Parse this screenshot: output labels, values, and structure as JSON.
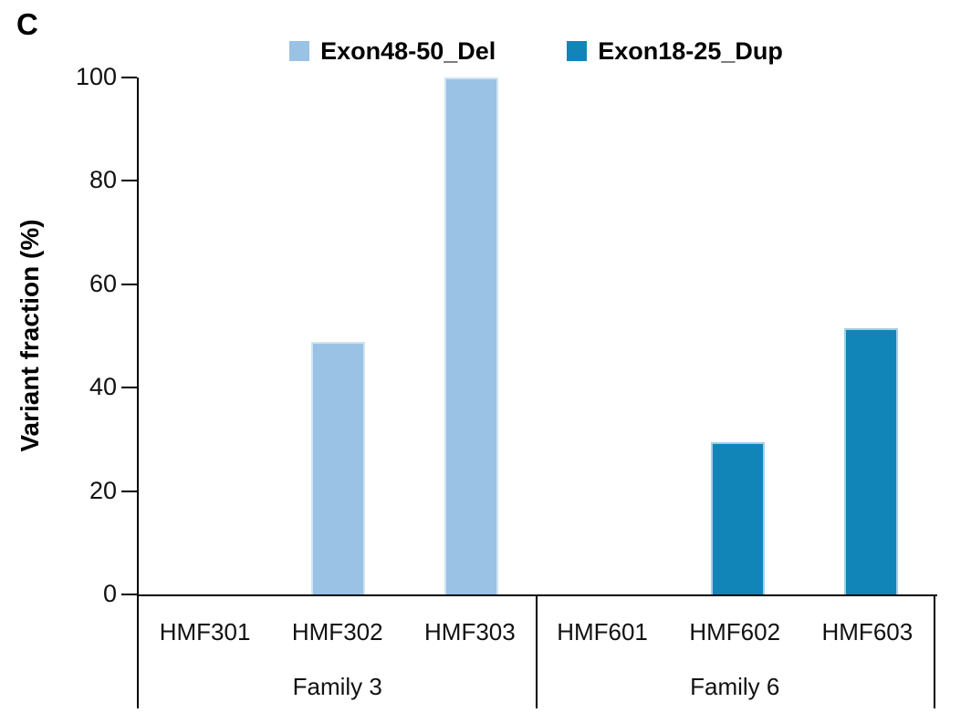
{
  "panel_label": "C",
  "legend": {
    "items": [
      {
        "label": "Exon48-50_Del",
        "color": "#9AC2E5"
      },
      {
        "label": "Exon18-25_Dup",
        "color": "#1185B8"
      }
    ]
  },
  "y_axis": {
    "title": "Variant fraction (%)",
    "ticks": [
      0,
      20,
      40,
      60,
      80,
      100
    ]
  },
  "chart_data": {
    "type": "bar",
    "title": "",
    "xlabel": "",
    "ylabel": "Variant fraction (%)",
    "ylim": [
      0,
      100
    ],
    "yticks": [
      0,
      20,
      40,
      60,
      80,
      100
    ],
    "grid": false,
    "legend_position": "top-center",
    "groups": [
      {
        "label": "Family 3",
        "series": "Exon48-50_Del",
        "color": "#9AC2E5",
        "border_color": "#cfe3f3",
        "categories": [
          "HMF301",
          "HMF302",
          "HMF303"
        ],
        "values": [
          0,
          48.9,
          100
        ]
      },
      {
        "label": "Family 6",
        "series": "Exon18-25_Dup",
        "color": "#1185B8",
        "border_color": "#a9cde4",
        "categories": [
          "HMF601",
          "HMF602",
          "HMF603"
        ],
        "values": [
          0,
          29.5,
          51.5
        ]
      }
    ]
  }
}
